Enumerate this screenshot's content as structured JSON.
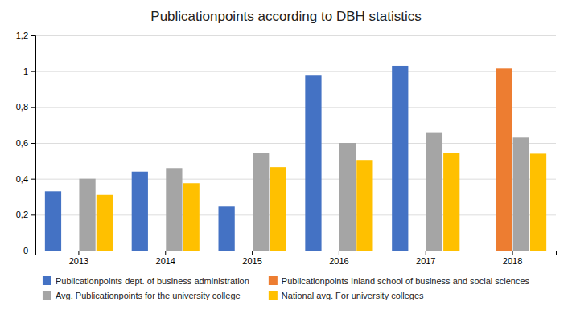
{
  "chart_data": {
    "type": "bar",
    "title": "Publicationpoints according to DBH statistics",
    "categories": [
      "2013",
      "2014",
      "2015",
      "2016",
      "2017",
      "2018"
    ],
    "series": [
      {
        "name": "Publicationpoints dept. of business administration",
        "color": "#4472C4",
        "values": [
          0.33,
          0.44,
          0.245,
          0.975,
          1.03,
          null
        ]
      },
      {
        "name": "Publicationpoints Inland school of business and social sciences",
        "color": "#ED7D31",
        "values": [
          null,
          null,
          null,
          null,
          null,
          1.015
        ]
      },
      {
        "name": "Avg. Publicationpoints for the university college",
        "color": "#A5A5A5",
        "values": [
          0.4,
          0.46,
          0.545,
          0.6,
          0.66,
          0.63
        ]
      },
      {
        "name": "National avg. For university colleges",
        "color": "#FFC000",
        "values": [
          0.31,
          0.375,
          0.465,
          0.505,
          0.545,
          0.54
        ]
      }
    ],
    "ylim": [
      0,
      1.2
    ],
    "yticks": [
      0,
      {
        "value": 0.2,
        "label": "0,2"
      },
      {
        "value": 0.4,
        "label": "0,4"
      },
      {
        "value": 0.6,
        "label": "0,6"
      },
      {
        "value": 0.8,
        "label": "0,8"
      },
      1,
      {
        "value": 1.2,
        "label": "1,2"
      }
    ],
    "grid": true,
    "legend": "bottom"
  }
}
